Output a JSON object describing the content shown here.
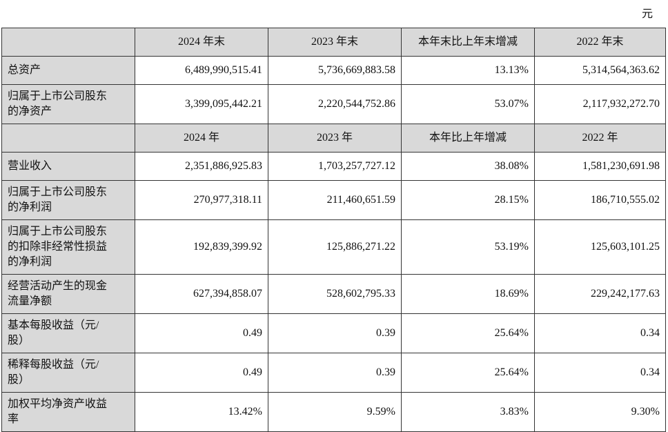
{
  "unit": "元",
  "header1": [
    "2024 年末",
    "2023 年末",
    "本年末比上年末增减",
    "2022 年末"
  ],
  "block1": [
    {
      "label": "总资产",
      "values": [
        "6,489,990,515.41",
        "5,736,669,883.58",
        "13.13%",
        "5,314,564,363.62"
      ]
    },
    {
      "label": "归属于上市公司股东\n的净资产",
      "values": [
        "3,399,095,442.21",
        "2,220,544,752.86",
        "53.07%",
        "2,117,932,272.70"
      ]
    }
  ],
  "header2": [
    "2024 年",
    "2023 年",
    "本年比上年增减",
    "2022 年"
  ],
  "block2": [
    {
      "label": "营业收入",
      "values": [
        "2,351,886,925.83",
        "1,703,257,727.12",
        "38.08%",
        "1,581,230,691.98"
      ]
    },
    {
      "label": "归属于上市公司股东\n的净利润",
      "values": [
        "270,977,318.11",
        "211,460,651.59",
        "28.15%",
        "186,710,555.02"
      ]
    },
    {
      "label": "归属于上市公司股东\n的扣除非经常性损益\n的净利润",
      "values": [
        "192,839,399.92",
        "125,886,271.22",
        "53.19%",
        "125,603,101.25"
      ]
    },
    {
      "label": "经营活动产生的现金\n流量净额",
      "values": [
        "627,394,858.07",
        "528,602,795.33",
        "18.69%",
        "229,242,177.63"
      ]
    },
    {
      "label": "基本每股收益（元/\n股）",
      "values": [
        "0.49",
        "0.39",
        "25.64%",
        "0.34"
      ]
    },
    {
      "label": "稀释每股收益（元/\n股）",
      "values": [
        "0.49",
        "0.39",
        "25.64%",
        "0.34"
      ]
    },
    {
      "label": "加权平均净资产收益\n率",
      "values": [
        "13.42%",
        "9.59%",
        "3.83%",
        "9.30%"
      ]
    }
  ]
}
